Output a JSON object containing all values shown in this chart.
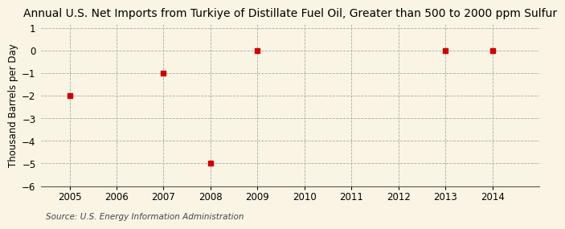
{
  "title": "Annual U.S. Net Imports from Turkiye of Distillate Fuel Oil, Greater than 500 to 2000 ppm Sulfur",
  "ylabel": "Thousand Barrels per Day",
  "source": "Source: U.S. Energy Information Administration",
  "x_data": [
    2005,
    2007,
    2008,
    2009,
    2013,
    2014
  ],
  "y_data": [
    -2,
    -1,
    -5,
    0,
    0,
    0
  ],
  "xlim": [
    2004.4,
    2015.0
  ],
  "ylim": [
    -6,
    1.2
  ],
  "yticks": [
    1,
    0,
    -1,
    -2,
    -3,
    -4,
    -5,
    -6
  ],
  "xticks": [
    2005,
    2006,
    2007,
    2008,
    2009,
    2010,
    2011,
    2012,
    2013,
    2014
  ],
  "marker_color": "#cc0000",
  "marker": "s",
  "marker_size": 4,
  "bg_color": "#faf4e4",
  "grid_color": "#aaaaaa",
  "title_fontsize": 10,
  "label_fontsize": 8.5,
  "tick_fontsize": 8.5,
  "source_fontsize": 7.5
}
